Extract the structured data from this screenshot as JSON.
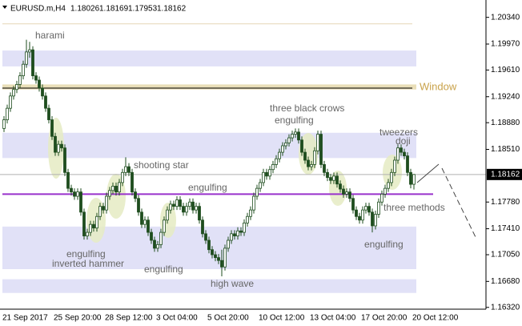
{
  "chart_data": {
    "type": "candlestick",
    "symbol": "EURUSD.m,H4",
    "categories": [
      "21 Sep 2017",
      null,
      null,
      null,
      null,
      null,
      null,
      null,
      null,
      null,
      null,
      null,
      null,
      null,
      null,
      null,
      "25 Sep 20:00",
      null,
      null,
      null,
      null,
      null,
      null,
      null,
      null,
      null,
      null,
      null,
      null,
      null,
      null,
      null,
      "28 Sep 12:00",
      null,
      null,
      null,
      null,
      null,
      null,
      null,
      null,
      null,
      null,
      null,
      null,
      null,
      null,
      null,
      "3 Oct 04:00",
      null,
      null,
      null,
      null,
      null,
      null,
      null,
      null,
      null,
      null,
      null,
      null,
      null,
      null,
      null,
      "5 Oct 20:00",
      null,
      null,
      null,
      null,
      null,
      null,
      null,
      null,
      null,
      null,
      null,
      null,
      null,
      null,
      null,
      "10 Oct 12:00",
      null,
      null,
      null,
      null,
      null,
      null,
      null,
      null,
      null,
      null,
      null,
      null,
      null,
      null,
      null,
      "13 Oct 04:00",
      null,
      null,
      null,
      null,
      null,
      null,
      null,
      null,
      null,
      null,
      null,
      null,
      null,
      null,
      null,
      "17 Oct 20:00",
      null,
      null,
      null,
      null,
      null,
      null,
      null,
      null,
      null,
      null,
      null,
      null,
      null,
      null,
      null,
      "20 Oct 12:00"
    ],
    "open": [
      1.188,
      1.1892,
      1.1908,
      1.1925,
      1.1934,
      1.1941,
      1.1953,
      1.1969,
      1.1986,
      1.1989,
      1.1953,
      1.1947,
      1.1936,
      1.1925,
      1.1908,
      1.1892,
      1.1869,
      1.1847,
      1.1858,
      1.1853,
      1.1819,
      1.1797,
      1.1792,
      1.1786,
      1.1792,
      1.1764,
      1.1731,
      1.1736,
      1.1747,
      1.1742,
      1.1758,
      1.1772,
      1.1767,
      1.1786,
      1.1794,
      1.18,
      1.1792,
      1.1805,
      1.1819,
      1.1827,
      1.1819,
      1.1792,
      1.1783,
      1.1764,
      1.1747,
      1.1753,
      1.1736,
      1.1725,
      1.1714,
      1.1719,
      1.1736,
      1.1753,
      1.1767,
      1.1775,
      1.1772,
      1.1781,
      1.1772,
      1.1764,
      1.1772,
      1.1778,
      1.1767,
      1.1772,
      1.1753,
      1.1734,
      1.1725,
      1.1712,
      1.1705,
      1.1701,
      1.1697,
      1.1688,
      1.1714,
      1.1725,
      1.1734,
      1.1731,
      1.1738,
      1.1736,
      1.1749,
      1.1758,
      1.1767,
      1.1786,
      1.1797,
      1.1805,
      1.1819,
      1.1814,
      1.1823,
      1.183,
      1.1838,
      1.1847,
      1.1856,
      1.186,
      1.1867,
      1.1872,
      1.1875,
      1.1864,
      1.1847,
      1.1836,
      1.1827,
      1.183,
      1.1849,
      1.1872,
      1.183,
      1.1819,
      1.1812,
      1.1808,
      1.1814,
      1.1803,
      1.1796,
      1.1789,
      1.1792,
      1.1783,
      1.1767,
      1.1758,
      1.1753,
      1.1767,
      1.1772,
      1.1764,
      1.1745,
      1.1761,
      1.1778,
      1.1789,
      1.1797,
      1.1805,
      1.1819,
      1.1836,
      1.1853,
      1.1847,
      1.1842,
      1.1819,
      1.18026
    ],
    "high": [
      1.1897,
      1.1913,
      1.193,
      1.1939,
      1.1946,
      1.1958,
      1.1974,
      1.2003,
      1.2,
      1.1994,
      1.1958,
      1.1952,
      1.1941,
      1.193,
      1.1913,
      1.1897,
      1.1874,
      1.1863,
      1.1863,
      1.1858,
      1.1824,
      1.1802,
      1.1797,
      1.1797,
      1.1797,
      1.1769,
      1.1741,
      1.1752,
      1.1752,
      1.1763,
      1.1777,
      1.1777,
      1.1791,
      1.1799,
      1.1805,
      1.1805,
      1.181,
      1.1824,
      1.184,
      1.1832,
      1.1824,
      1.1797,
      1.1788,
      1.1769,
      1.1758,
      1.1758,
      1.1741,
      1.173,
      1.1724,
      1.1741,
      1.1758,
      1.1772,
      1.178,
      1.178,
      1.1786,
      1.1786,
      1.1777,
      1.1777,
      1.1783,
      1.1783,
      1.1777,
      1.1777,
      1.1758,
      1.1739,
      1.173,
      1.1717,
      1.171,
      1.1706,
      1.1712,
      1.1719,
      1.173,
      1.1739,
      1.1739,
      1.1743,
      1.1743,
      1.1754,
      1.1763,
      1.1772,
      1.1791,
      1.1802,
      1.181,
      1.1824,
      1.1824,
      1.1828,
      1.1835,
      1.1843,
      1.1852,
      1.1861,
      1.1865,
      1.1872,
      1.1877,
      1.188,
      1.188,
      1.1869,
      1.1852,
      1.1841,
      1.1835,
      1.1854,
      1.1877,
      1.1877,
      1.1835,
      1.1824,
      1.1817,
      1.1819,
      1.1819,
      1.1808,
      1.1801,
      1.1797,
      1.1797,
      1.1788,
      1.1772,
      1.1763,
      1.1772,
      1.1777,
      1.1777,
      1.1769,
      1.1766,
      1.1783,
      1.1794,
      1.1802,
      1.181,
      1.1824,
      1.1841,
      1.1858,
      1.1858,
      1.1852,
      1.1847,
      1.1824,
      1.18169
    ],
    "low": [
      1.1875,
      1.1887,
      1.1903,
      1.192,
      1.1929,
      1.1936,
      1.1948,
      1.1964,
      1.1978,
      1.1948,
      1.1942,
      1.1931,
      1.192,
      1.1903,
      1.1887,
      1.1864,
      1.1842,
      1.1842,
      1.1848,
      1.1814,
      1.1792,
      1.1787,
      1.1781,
      1.1781,
      1.1759,
      1.1726,
      1.1726,
      1.1731,
      1.1737,
      1.1737,
      1.1753,
      1.1762,
      1.1762,
      1.1781,
      1.1789,
      1.1787,
      1.1787,
      1.18,
      1.1814,
      1.1814,
      1.1787,
      1.1778,
      1.1759,
      1.1742,
      1.1742,
      1.1731,
      1.172,
      1.1709,
      1.1709,
      1.1714,
      1.1731,
      1.1748,
      1.1762,
      1.1767,
      1.1767,
      1.1767,
      1.1759,
      1.1759,
      1.1767,
      1.1762,
      1.1762,
      1.1748,
      1.1729,
      1.172,
      1.1707,
      1.17,
      1.1696,
      1.1692,
      1.1675,
      1.1683,
      1.1709,
      1.172,
      1.1726,
      1.1726,
      1.1731,
      1.1731,
      1.1744,
      1.1753,
      1.1762,
      1.1781,
      1.1792,
      1.18,
      1.1809,
      1.1809,
      1.1818,
      1.1825,
      1.1833,
      1.1842,
      1.1851,
      1.1855,
      1.1862,
      1.1867,
      1.1859,
      1.1842,
      1.1831,
      1.1822,
      1.1822,
      1.1825,
      1.1844,
      1.1825,
      1.1814,
      1.1807,
      1.1803,
      1.1803,
      1.1798,
      1.1791,
      1.1784,
      1.1784,
      1.1778,
      1.1762,
      1.1753,
      1.1748,
      1.1748,
      1.1762,
      1.1759,
      1.1736,
      1.174,
      1.1756,
      1.1773,
      1.1784,
      1.1792,
      1.18,
      1.1814,
      1.1831,
      1.1842,
      1.1837,
      1.1814,
      1.1797,
      1.17953
    ],
    "close": [
      1.1892,
      1.1908,
      1.1925,
      1.1934,
      1.1941,
      1.1953,
      1.1969,
      1.1986,
      1.1989,
      1.1953,
      1.1947,
      1.1936,
      1.1925,
      1.1908,
      1.1892,
      1.1869,
      1.1847,
      1.1858,
      1.1853,
      1.1819,
      1.1797,
      1.1792,
      1.1786,
      1.1792,
      1.1764,
      1.1731,
      1.1736,
      1.1747,
      1.1742,
      1.1758,
      1.1772,
      1.1767,
      1.1786,
      1.1794,
      1.18,
      1.1792,
      1.1805,
      1.1819,
      1.1827,
      1.1819,
      1.1792,
      1.1783,
      1.1764,
      1.1747,
      1.1753,
      1.1736,
      1.1725,
      1.1714,
      1.1719,
      1.1736,
      1.1753,
      1.1767,
      1.1775,
      1.1772,
      1.1781,
      1.1772,
      1.1764,
      1.1772,
      1.1778,
      1.1767,
      1.1772,
      1.1753,
      1.1734,
      1.1725,
      1.1712,
      1.1705,
      1.1701,
      1.1697,
      1.1688,
      1.1714,
      1.1725,
      1.1734,
      1.1731,
      1.1738,
      1.1736,
      1.1749,
      1.1758,
      1.1767,
      1.1786,
      1.1797,
      1.1805,
      1.1819,
      1.1814,
      1.1823,
      1.183,
      1.1838,
      1.1847,
      1.1856,
      1.186,
      1.1867,
      1.1872,
      1.1875,
      1.1864,
      1.1847,
      1.1836,
      1.1827,
      1.183,
      1.1849,
      1.1872,
      1.183,
      1.1819,
      1.1812,
      1.1808,
      1.1814,
      1.1803,
      1.1796,
      1.1789,
      1.1792,
      1.1783,
      1.1767,
      1.1758,
      1.1753,
      1.1767,
      1.1772,
      1.1764,
      1.1745,
      1.1761,
      1.1778,
      1.1789,
      1.1797,
      1.1805,
      1.1819,
      1.1836,
      1.1853,
      1.1847,
      1.1842,
      1.1819,
      1.18026,
      1.18162
    ],
    "bull_color": "#ffffff",
    "bear_color": "#1e4d1e",
    "wick_color": "#1e4d1e",
    "ylim": [
      1.16295,
      1.20525
    ],
    "yticks": [
      {
        "value": 1.2034,
        "label": "1.20340"
      },
      {
        "value": 1.1997,
        "label": "1.19970"
      },
      {
        "value": 1.1961,
        "label": "1.19610"
      },
      {
        "value": 1.1924,
        "label": "1.19240"
      },
      {
        "value": 1.1888,
        "label": "1.18880"
      },
      {
        "value": 1.1851,
        "label": "1.18510"
      },
      {
        "value": 1.1778,
        "label": "1.17780"
      },
      {
        "value": 1.1741,
        "label": "1.17410"
      },
      {
        "value": 1.1705,
        "label": "1.17050"
      },
      {
        "value": 1.1668,
        "label": "1.16680"
      },
      {
        "value": 1.1632,
        "label": "1.16320"
      }
    ],
    "zones": [
      {
        "from": 1.1988,
        "to": 1.1966,
        "color": "#e1e1f7"
      },
      {
        "from": 1.1874,
        "to": 1.1839,
        "color": "#e1e1f7"
      },
      {
        "from": 1.1744,
        "to": 1.1685,
        "color": "#e1e1f7"
      },
      {
        "from": 1.1671,
        "to": 1.1652,
        "color": "#e1e1f7"
      },
      {
        "from": 1.1941,
        "to": 1.1934,
        "color": "#e9deb8"
      }
    ],
    "levels": [
      {
        "value": 1.2025,
        "color": "#e6d6b6"
      },
      {
        "value": 1.19359,
        "color": "#000000"
      },
      {
        "value": 1.1789,
        "color": "#9932cc"
      }
    ],
    "annotations": [
      "harami",
      "shooting star",
      "engulfing",
      "engulfing",
      "inverted hammer",
      "engulfing",
      "high wave",
      "three black crows",
      "engulfing",
      "tweezers",
      "doji",
      "three methods",
      "engulfing",
      "Window"
    ],
    "grid": false
  }
}
